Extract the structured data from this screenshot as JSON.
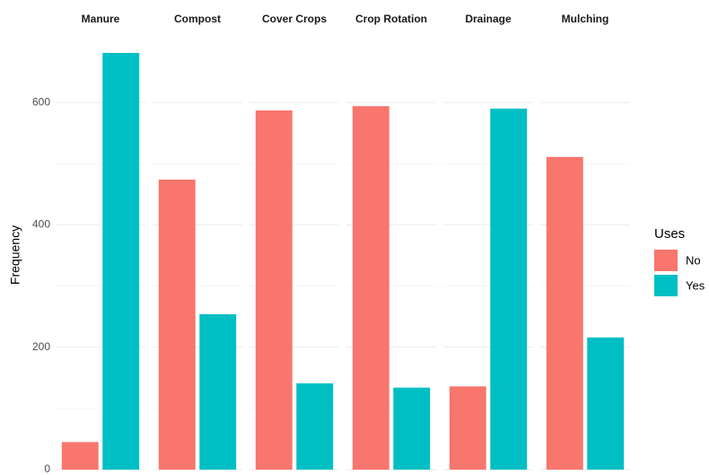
{
  "chart_data": {
    "type": "bar",
    "facets": [
      "Manure",
      "Compost",
      "Cover Crops",
      "Crop Rotation",
      "Drainage",
      "Mulching"
    ],
    "series": [
      {
        "name": "No",
        "color": "#F8766D",
        "values": [
          45,
          474,
          587,
          594,
          136,
          511
        ]
      },
      {
        "name": "Yes",
        "color": "#00BFC4",
        "values": [
          681,
          254,
          141,
          134,
          590,
          216
        ]
      }
    ],
    "ylabel": "Frequency",
    "legend_title": "Uses",
    "ylim": [
      0,
      700
    ],
    "yticks": [
      0,
      200,
      400,
      600
    ],
    "minor_yticks": [
      100,
      300,
      500
    ],
    "grid": true,
    "legend": "right"
  }
}
